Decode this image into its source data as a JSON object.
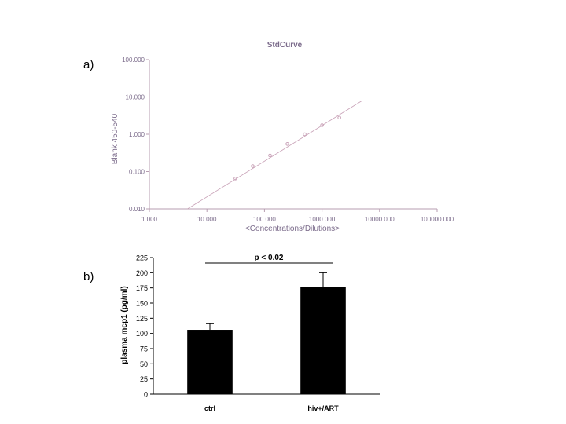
{
  "panels": {
    "a": "a)",
    "b": "b)"
  },
  "chart_data": [
    {
      "type": "scatter",
      "title": "StdCurve",
      "xlabel": "<Concentrations/Dilutions>",
      "ylabel": "Blank 450-540",
      "x_scale": "log",
      "y_scale": "log",
      "xlim": [
        1,
        100000
      ],
      "ylim": [
        0.01,
        100
      ],
      "x_ticks": [
        1,
        10,
        100,
        1000,
        10000,
        100000
      ],
      "x_tick_labels": [
        "1.000",
        "10.000",
        "100.000",
        "1000.000",
        "10000.000",
        "100000.000"
      ],
      "y_ticks": [
        0.01,
        0.1,
        1,
        10,
        100
      ],
      "y_tick_labels": [
        "0.010",
        "0.100",
        "1.000",
        "10.000",
        "100.000"
      ],
      "points": [
        {
          "x": 31.25,
          "y": 0.065
        },
        {
          "x": 62.5,
          "y": 0.14
        },
        {
          "x": 125,
          "y": 0.27
        },
        {
          "x": 250,
          "y": 0.55
        },
        {
          "x": 500,
          "y": 1.0
        },
        {
          "x": 1000,
          "y": 1.75
        },
        {
          "x": 2000,
          "y": 2.8
        }
      ],
      "fit_line": [
        {
          "x": 4.6,
          "y": 0.01
        },
        {
          "x": 5000,
          "y": 8.0
        }
      ],
      "grid": false,
      "color": "#c9a3b8"
    },
    {
      "type": "bar",
      "categories": [
        "ctrl",
        "hiv+/ART"
      ],
      "values": [
        106,
        177
      ],
      "error": [
        10,
        23
      ],
      "ylabel": "plasma mcp1 (pg/ml)",
      "ylim": [
        0,
        225
      ],
      "y_ticks": [
        0,
        25,
        50,
        75,
        100,
        125,
        150,
        175,
        200,
        225
      ],
      "annotation": "p < 0.02",
      "grid": false,
      "color": "#000000"
    }
  ]
}
